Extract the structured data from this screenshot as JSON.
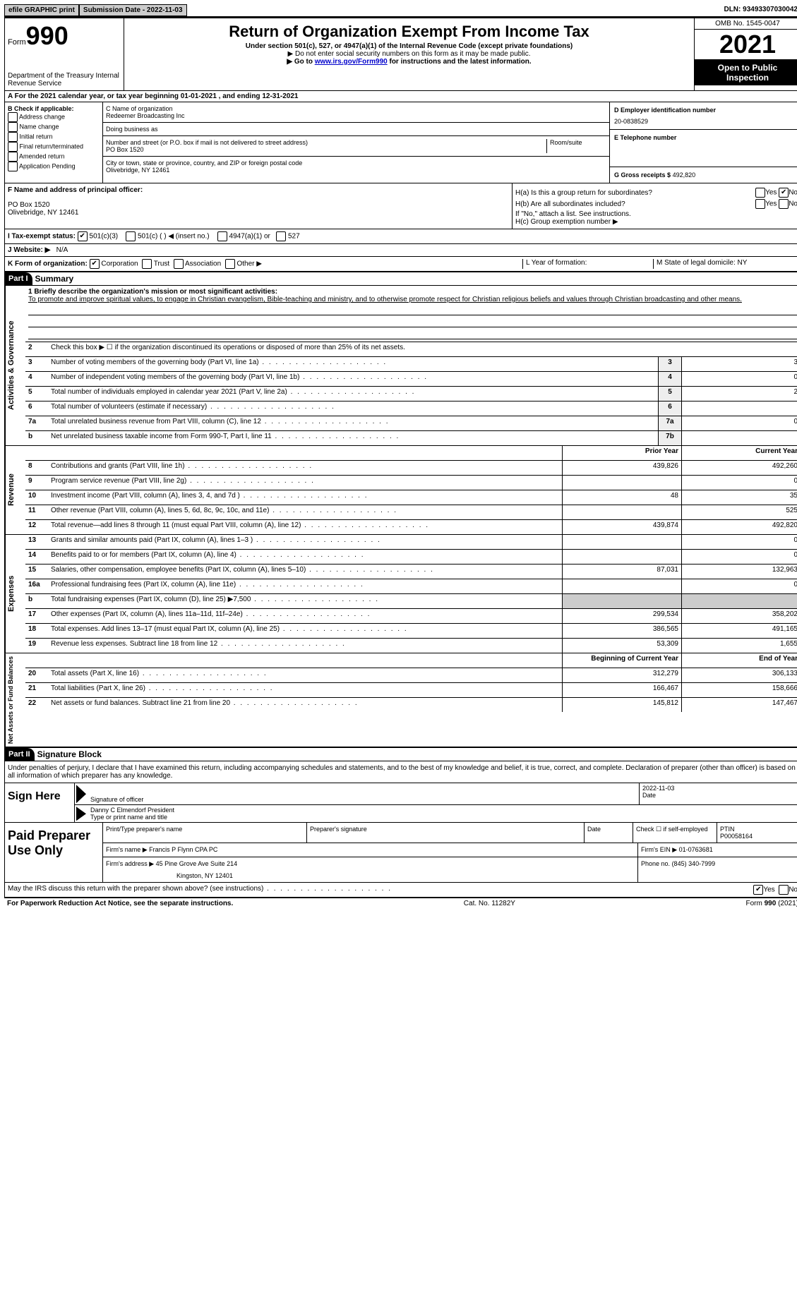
{
  "top": {
    "efile": "efile GRAPHIC print",
    "submission": "Submission Date - 2022-11-03",
    "dln": "DLN: 93493307030042"
  },
  "header": {
    "form": "Form",
    "form_num": "990",
    "dept": "Department of the Treasury Internal Revenue Service",
    "title": "Return of Organization Exempt From Income Tax",
    "subtitle": "Under section 501(c), 527, or 4947(a)(1) of the Internal Revenue Code (except private foundations)",
    "note1": "▶ Do not enter social security numbers on this form as it may be made public.",
    "note2_pre": "▶ Go to ",
    "note2_link": "www.irs.gov/Form990",
    "note2_post": " for instructions and the latest information.",
    "omb": "OMB No. 1545-0047",
    "year": "2021",
    "open": "Open to Public Inspection"
  },
  "rowA": "A For the 2021 calendar year, or tax year beginning 01-01-2021   , and ending 12-31-2021",
  "sectionB": {
    "b_label": "B Check if applicable:",
    "opts": [
      "Address change",
      "Name change",
      "Initial return",
      "Final return/terminated",
      "Amended return",
      "Application Pending"
    ],
    "c_label": "C Name of organization",
    "c_name": "Redeemer Broadcasting Inc",
    "dba": "Doing business as",
    "addr_label": "Number and street (or P.O. box if mail is not delivered to street address)",
    "room": "Room/suite",
    "addr": "PO Box 1520",
    "city_label": "City or town, state or province, country, and ZIP or foreign postal code",
    "city": "Olivebridge, NY  12461",
    "d_label": "D Employer identification number",
    "ein": "20-0838529",
    "e_label": "E Telephone number",
    "g_label": "G Gross receipts $",
    "g_val": "492,820"
  },
  "sectionF": {
    "f_label": "F Name and address of principal officer:",
    "f_addr1": "PO Box 1520",
    "f_addr2": "Olivebridge, NY  12461",
    "ha": "H(a)  Is this a group return for subordinates?",
    "hb": "H(b)  Are all subordinates included?",
    "hb_note": "If \"No,\" attach a list. See instructions.",
    "hc": "H(c)  Group exemption number ▶",
    "yes": "Yes",
    "no": "No"
  },
  "rowI": {
    "label": "I   Tax-exempt status:",
    "o1": "501(c)(3)",
    "o2": "501(c) (  ) ◀ (insert no.)",
    "o3": "4947(a)(1) or",
    "o4": "527"
  },
  "rowJ": {
    "label": "J   Website: ▶",
    "val": "N/A"
  },
  "rowK": {
    "label": "K Form of organization:",
    "o1": "Corporation",
    "o2": "Trust",
    "o3": "Association",
    "o4": "Other ▶",
    "l": "L Year of formation:",
    "m": "M State of legal domicile: NY"
  },
  "part1": {
    "label": "Part I",
    "title": "Summary"
  },
  "mission": {
    "q": "1   Briefly describe the organization's mission or most significant activities:",
    "text": "To promote and improve spiritual values, to engage in Christian evangelism, Bible-teaching and ministry, and to otherwise promote respect for Christian religious beliefs and values through Christian broadcasting and other means."
  },
  "gov": {
    "side": "Activities & Governance",
    "l2": "Check this box ▶ ☐ if the organization discontinued its operations or disposed of more than 25% of its net assets.",
    "rows": [
      {
        "n": "3",
        "d": "Number of voting members of the governing body (Part VI, line 1a)",
        "box": "3",
        "v": "3"
      },
      {
        "n": "4",
        "d": "Number of independent voting members of the governing body (Part VI, line 1b)",
        "box": "4",
        "v": "0"
      },
      {
        "n": "5",
        "d": "Total number of individuals employed in calendar year 2021 (Part V, line 2a)",
        "box": "5",
        "v": "2"
      },
      {
        "n": "6",
        "d": "Total number of volunteers (estimate if necessary)",
        "box": "6",
        "v": ""
      },
      {
        "n": "7a",
        "d": "Total unrelated business revenue from Part VIII, column (C), line 12",
        "box": "7a",
        "v": "0"
      },
      {
        "n": "b",
        "d": "Net unrelated business taxable income from Form 990-T, Part I, line 11",
        "box": "7b",
        "v": ""
      }
    ]
  },
  "rev": {
    "side": "Revenue",
    "h1": "Prior Year",
    "h2": "Current Year",
    "rows": [
      {
        "n": "8",
        "d": "Contributions and grants (Part VIII, line 1h)",
        "p": "439,826",
        "c": "492,260"
      },
      {
        "n": "9",
        "d": "Program service revenue (Part VIII, line 2g)",
        "p": "",
        "c": "0"
      },
      {
        "n": "10",
        "d": "Investment income (Part VIII, column (A), lines 3, 4, and 7d )",
        "p": "48",
        "c": "35"
      },
      {
        "n": "11",
        "d": "Other revenue (Part VIII, column (A), lines 5, 6d, 8c, 9c, 10c, and 11e)",
        "p": "",
        "c": "525"
      },
      {
        "n": "12",
        "d": "Total revenue—add lines 8 through 11 (must equal Part VIII, column (A), line 12)",
        "p": "439,874",
        "c": "492,820"
      }
    ]
  },
  "exp": {
    "side": "Expenses",
    "rows": [
      {
        "n": "13",
        "d": "Grants and similar amounts paid (Part IX, column (A), lines 1–3 )",
        "p": "",
        "c": "0"
      },
      {
        "n": "14",
        "d": "Benefits paid to or for members (Part IX, column (A), line 4)",
        "p": "",
        "c": "0"
      },
      {
        "n": "15",
        "d": "Salaries, other compensation, employee benefits (Part IX, column (A), lines 5–10)",
        "p": "87,031",
        "c": "132,963"
      },
      {
        "n": "16a",
        "d": "Professional fundraising fees (Part IX, column (A), line 11e)",
        "p": "",
        "c": "0"
      },
      {
        "n": "b",
        "d": "Total fundraising expenses (Part IX, column (D), line 25) ▶7,500",
        "p": "shaded",
        "c": "shaded"
      },
      {
        "n": "17",
        "d": "Other expenses (Part IX, column (A), lines 11a–11d, 11f–24e)",
        "p": "299,534",
        "c": "358,202"
      },
      {
        "n": "18",
        "d": "Total expenses. Add lines 13–17 (must equal Part IX, column (A), line 25)",
        "p": "386,565",
        "c": "491,165"
      },
      {
        "n": "19",
        "d": "Revenue less expenses. Subtract line 18 from line 12",
        "p": "53,309",
        "c": "1,655"
      }
    ]
  },
  "net": {
    "side": "Net Assets or Fund Balances",
    "h1": "Beginning of Current Year",
    "h2": "End of Year",
    "rows": [
      {
        "n": "20",
        "d": "Total assets (Part X, line 16)",
        "p": "312,279",
        "c": "306,133"
      },
      {
        "n": "21",
        "d": "Total liabilities (Part X, line 26)",
        "p": "166,467",
        "c": "158,666"
      },
      {
        "n": "22",
        "d": "Net assets or fund balances. Subtract line 21 from line 20",
        "p": "145,812",
        "c": "147,467"
      }
    ]
  },
  "part2": {
    "label": "Part II",
    "title": "Signature Block"
  },
  "sig": {
    "text": "Under penalties of perjury, I declare that I have examined this return, including accompanying schedules and statements, and to the best of my knowledge and belief, it is true, correct, and complete. Declaration of preparer (other than officer) is based on all information of which preparer has any knowledge.",
    "sign_here": "Sign Here",
    "sig_officer": "Signature of officer",
    "date_lbl": "Date",
    "date": "2022-11-03",
    "name": "Danny C Elmendorf  President",
    "name_lbl": "Type or print name and title"
  },
  "prep": {
    "label": "Paid Preparer Use Only",
    "h1": "Print/Type preparer's name",
    "h2": "Preparer's signature",
    "h3": "Date",
    "h4_a": "Check ☐ if self-employed",
    "h4_b": "PTIN",
    "ptin": "P00058164",
    "firm_lbl": "Firm's name    ▶",
    "firm": "Francis P Flynn CPA PC",
    "ein_lbl": "Firm's EIN ▶",
    "ein": "01-0763681",
    "addr_lbl": "Firm's address ▶",
    "addr1": "45 Pine Grove Ave Suite 214",
    "addr2": "Kingston, NY  12401",
    "phone_lbl": "Phone no.",
    "phone": "(845) 340-7999"
  },
  "discuss": {
    "q": "May the IRS discuss this return with the preparer shown above? (see instructions)",
    "yes": "Yes",
    "no": "No"
  },
  "footer": {
    "l": "For Paperwork Reduction Act Notice, see the separate instructions.",
    "c": "Cat. No. 11282Y",
    "r": "Form 990 (2021)"
  }
}
